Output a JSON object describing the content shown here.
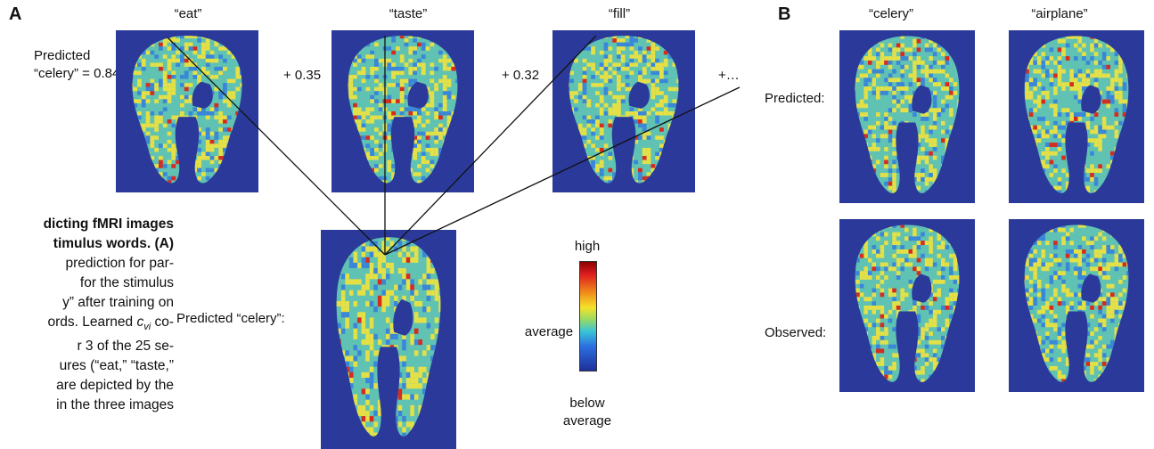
{
  "panel_a": {
    "letter": "A",
    "words": [
      "“eat”",
      "“taste”",
      "“fill”"
    ],
    "predicted_label_line1": "Predicted",
    "predicted_label_line2": "“celery” = 0.84",
    "coef_2": "+ 0.35",
    "coef_3": "+ 0.32",
    "coef_more": "+…",
    "result_label": "Predicted “celery”:"
  },
  "colorbar": {
    "high": "high",
    "average": "average",
    "below_line1": "below",
    "below_line2": "average",
    "colors": [
      "#8b0000",
      "#e02020",
      "#f08a1a",
      "#f6e22a",
      "#9fdc5c",
      "#39c4d6",
      "#2b6fe0",
      "#1f2f9a"
    ]
  },
  "caption": {
    "line1": "dicting fMRI images",
    "line2": "timulus words. (A)",
    "line3": "prediction for par-",
    "line4": "for the stimulus",
    "line5": "y” after training on",
    "line6": "ords. Learned",
    "line6_var": "c",
    "line6_sub": "vi",
    "line6_end": " co-",
    "line7": "r 3 of the 25 se-",
    "line8": "ures (“eat,” “taste,”",
    "line9": "are depicted by the",
    "line10": "in the three images"
  },
  "panel_b": {
    "letter": "B",
    "col1": "“celery”",
    "col2": "“airplane”",
    "row1": "Predicted:",
    "row2": "Observed:"
  },
  "map_colors": {
    "background": "#2b3a9a",
    "tissue": "#5fc2b2",
    "yellow": "#e4e046",
    "red": "#d62b1e",
    "blue": "#3a86d8"
  }
}
